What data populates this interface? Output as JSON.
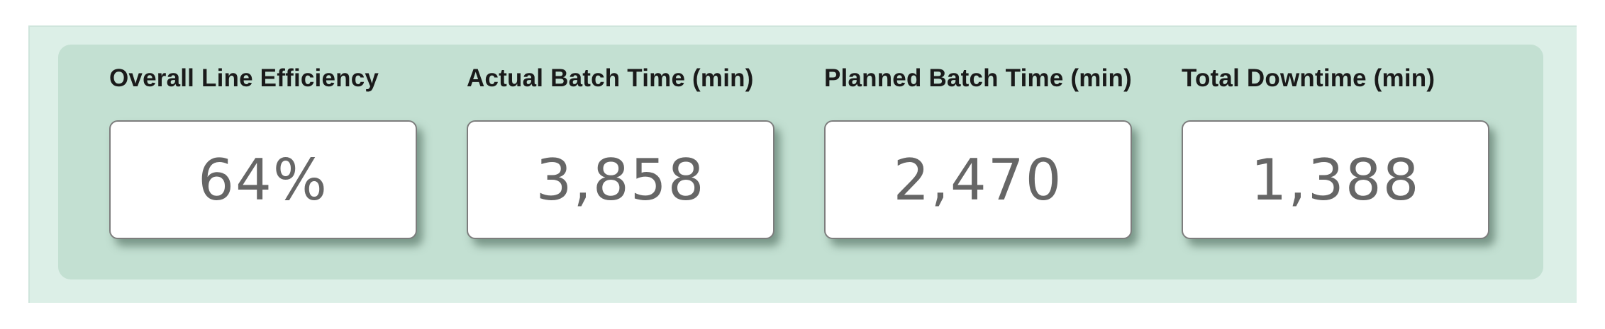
{
  "kpis": [
    {
      "title": "Overall Line Efficiency",
      "value": "64%"
    },
    {
      "title": "Actual Batch Time (min)",
      "value": "3,858"
    },
    {
      "title": "Planned Batch Time (min)",
      "value": "2,470"
    },
    {
      "title": "Total Downtime (min)",
      "value": "1,388"
    }
  ]
}
